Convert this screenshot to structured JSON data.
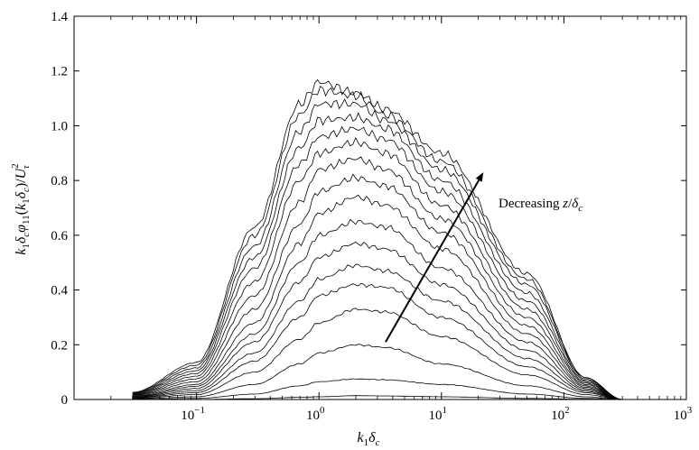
{
  "chart_data": {
    "type": "line",
    "xlabel": "k₁δc",
    "ylabel": "k₁δcφ₁₁(k₁δc)/U²τ",
    "x_scale": "log",
    "xlim": [
      0.01,
      1000
    ],
    "ylim": [
      0,
      1.4
    ],
    "y_ticks": [
      "0",
      "0.2",
      "0.4",
      "0.6",
      "0.8",
      "1.0",
      "1.2",
      "1.4"
    ],
    "x_ticks": [
      {
        "value": 0.1,
        "base": "10",
        "exp": "−1"
      },
      {
        "value": 1,
        "base": "10",
        "exp": "0"
      },
      {
        "value": 10,
        "base": "10",
        "exp": "1"
      },
      {
        "value": 100,
        "base": "10",
        "exp": "2"
      },
      {
        "value": 1000,
        "base": "10",
        "exp": "3"
      }
    ],
    "grid": false,
    "annotation": {
      "text": "Decreasing z/δc",
      "arrow_from": {
        "x": 3.5,
        "y": 0.21
      },
      "arrow_to": {
        "x": 22,
        "y": 0.83
      }
    },
    "series": [
      {
        "x": [
          0.03,
          0.1,
          0.3,
          0.7,
          1.0,
          2.0,
          3.5,
          10,
          50,
          150,
          300
        ],
        "y": [
          0.0,
          0.0,
          0.003,
          0.008,
          0.01,
          0.014,
          0.013,
          0.01,
          0.004,
          0.001,
          0.0
        ]
      },
      {
        "x": [
          0.03,
          0.1,
          0.3,
          0.7,
          1.0,
          2.0,
          3.5,
          10,
          50,
          150,
          300
        ],
        "y": [
          0.0,
          0.004,
          0.02,
          0.05,
          0.065,
          0.075,
          0.072,
          0.055,
          0.02,
          0.004,
          0.0
        ]
      },
      {
        "x": [
          0.03,
          0.1,
          0.3,
          0.7,
          1.0,
          2.0,
          3.5,
          10,
          50,
          150,
          300
        ],
        "y": [
          0.002,
          0.01,
          0.055,
          0.13,
          0.17,
          0.2,
          0.19,
          0.13,
          0.05,
          0.01,
          0.0
        ]
      },
      {
        "x": [
          0.03,
          0.1,
          0.3,
          0.7,
          1.0,
          2.0,
          3.5,
          10,
          50,
          150,
          300
        ],
        "y": [
          0.003,
          0.018,
          0.1,
          0.22,
          0.28,
          0.33,
          0.32,
          0.23,
          0.09,
          0.018,
          0.0
        ]
      },
      {
        "x": [
          0.03,
          0.1,
          0.3,
          0.7,
          1.0,
          2.0,
          3.5,
          10,
          50,
          150,
          300
        ],
        "y": [
          0.005,
          0.025,
          0.14,
          0.3,
          0.38,
          0.42,
          0.41,
          0.3,
          0.12,
          0.025,
          0.0
        ]
      },
      {
        "x": [
          0.03,
          0.1,
          0.3,
          0.7,
          1.0,
          2.0,
          3.5,
          10,
          50,
          150,
          300
        ],
        "y": [
          0.006,
          0.032,
          0.17,
          0.36,
          0.44,
          0.49,
          0.47,
          0.36,
          0.15,
          0.03,
          0.0
        ]
      },
      {
        "x": [
          0.03,
          0.1,
          0.3,
          0.7,
          1.0,
          2.0,
          3.5,
          10,
          50,
          150,
          300
        ],
        "y": [
          0.007,
          0.04,
          0.21,
          0.43,
          0.52,
          0.57,
          0.55,
          0.42,
          0.18,
          0.035,
          0.0
        ]
      },
      {
        "x": [
          0.03,
          0.1,
          0.3,
          0.7,
          1.0,
          2.0,
          3.5,
          10,
          50,
          150,
          300
        ],
        "y": [
          0.008,
          0.048,
          0.24,
          0.5,
          0.6,
          0.65,
          0.63,
          0.48,
          0.21,
          0.04,
          0.0
        ]
      },
      {
        "x": [
          0.03,
          0.1,
          0.3,
          0.7,
          1.0,
          2.0,
          3.5,
          10,
          50,
          150,
          300
        ],
        "y": [
          0.01,
          0.055,
          0.28,
          0.57,
          0.68,
          0.74,
          0.71,
          0.55,
          0.24,
          0.045,
          0.0
        ]
      },
      {
        "x": [
          0.03,
          0.1,
          0.3,
          0.7,
          1.0,
          2.0,
          3.5,
          10,
          50,
          150,
          300
        ],
        "y": [
          0.012,
          0.065,
          0.33,
          0.64,
          0.76,
          0.81,
          0.78,
          0.61,
          0.27,
          0.05,
          0.0
        ]
      },
      {
        "x": [
          0.03,
          0.1,
          0.3,
          0.7,
          1.0,
          2.0,
          3.5,
          10,
          50,
          150,
          300
        ],
        "y": [
          0.014,
          0.075,
          0.38,
          0.72,
          0.84,
          0.88,
          0.84,
          0.66,
          0.3,
          0.055,
          0.0
        ]
      },
      {
        "x": [
          0.03,
          0.1,
          0.3,
          0.7,
          1.0,
          2.0,
          3.5,
          10,
          50,
          150,
          300
        ],
        "y": [
          0.016,
          0.085,
          0.43,
          0.8,
          0.9,
          0.94,
          0.9,
          0.71,
          0.33,
          0.06,
          0.0
        ]
      },
      {
        "x": [
          0.03,
          0.1,
          0.3,
          0.7,
          1.0,
          2.0,
          3.5,
          10,
          50,
          150,
          300
        ],
        "y": [
          0.018,
          0.095,
          0.48,
          0.86,
          0.96,
          0.99,
          0.95,
          0.76,
          0.36,
          0.065,
          0.0
        ]
      },
      {
        "x": [
          0.03,
          0.1,
          0.3,
          0.7,
          1.0,
          2.0,
          3.5,
          10,
          50,
          150,
          300
        ],
        "y": [
          0.02,
          0.105,
          0.52,
          0.92,
          1.02,
          1.03,
          0.99,
          0.8,
          0.39,
          0.07,
          0.0
        ]
      },
      {
        "x": [
          0.03,
          0.1,
          0.3,
          0.7,
          1.0,
          2.0,
          3.5,
          10,
          50,
          150,
          300
        ],
        "y": [
          0.022,
          0.115,
          0.56,
          0.98,
          1.08,
          1.08,
          1.02,
          0.84,
          0.42,
          0.075,
          0.0
        ]
      },
      {
        "x": [
          0.03,
          0.1,
          0.3,
          0.7,
          1.0,
          2.0,
          3.5,
          10,
          50,
          150,
          300
        ],
        "y": [
          0.024,
          0.125,
          0.6,
          1.04,
          1.13,
          1.11,
          1.04,
          0.87,
          0.44,
          0.08,
          0.0
        ]
      },
      {
        "x": [
          0.03,
          0.1,
          0.3,
          0.7,
          1.0,
          2.0,
          3.5,
          10,
          50,
          150,
          300
        ],
        "y": [
          0.026,
          0.135,
          0.63,
          1.08,
          1.16,
          1.12,
          1.06,
          0.9,
          0.46,
          0.08,
          0.0
        ]
      }
    ]
  }
}
